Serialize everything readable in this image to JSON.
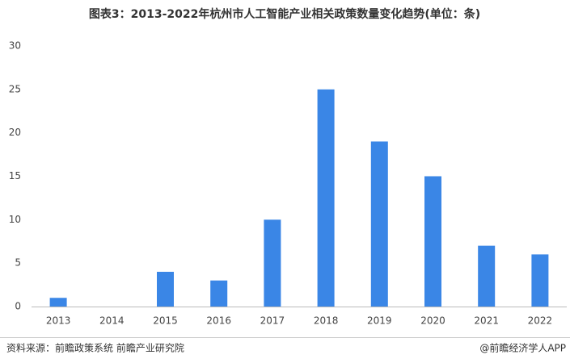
{
  "chart_data": {
    "type": "bar",
    "title": "图表3：2013-2022年杭州市人工智能产业相关政策数量变化趋势(单位：条)",
    "categories": [
      "2013",
      "2014",
      "2015",
      "2016",
      "2017",
      "2018",
      "2019",
      "2020",
      "2021",
      "2022"
    ],
    "values": [
      1,
      0,
      4,
      3,
      10,
      25,
      19,
      15,
      7,
      6
    ],
    "color": "#3a86e6",
    "ylim": [
      0,
      30
    ],
    "yticks": [
      0,
      5,
      10,
      15,
      20,
      25,
      30
    ],
    "grid": false,
    "source": "资料来源：前瞻政策系统 前瞻产业研究院",
    "credit": "@前瞻经济学人APP"
  }
}
